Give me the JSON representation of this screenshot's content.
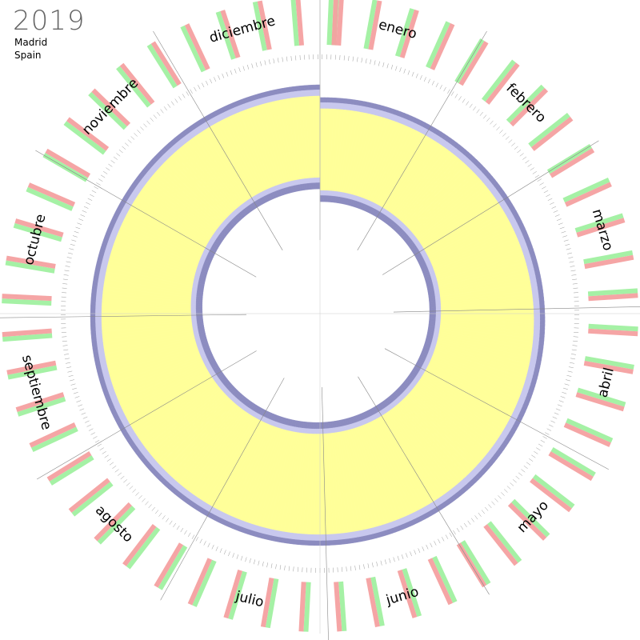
{
  "header": {
    "year": "2019",
    "city": "Madrid",
    "country": "Spain"
  },
  "months": [
    {
      "name": "enero",
      "days": 31
    },
    {
      "name": "febrero",
      "days": 28
    },
    {
      "name": "marzo",
      "days": 31
    },
    {
      "name": "abril",
      "days": 30
    },
    {
      "name": "mayo",
      "days": 31
    },
    {
      "name": "junio",
      "days": 30
    },
    {
      "name": "julio",
      "days": 31
    },
    {
      "name": "agosto",
      "days": 31
    },
    {
      "name": "septiembre",
      "days": 30
    },
    {
      "name": "octubre",
      "days": 31
    },
    {
      "name": "noviembre",
      "days": 30
    },
    {
      "name": "diciembre",
      "days": 31
    }
  ],
  "colors": {
    "day_band": "#ffff99",
    "twilight_light": "#c8c8ee",
    "twilight_dark": "#8c8cc0",
    "weekday_bar": "#a0f0a0",
    "weekend_bar": "#f4a0a0",
    "holiday_bar": "#f08080",
    "axis_line": "#888888"
  },
  "legend": {
    "sunrise_sunset_band": "daylight",
    "weekday_color": "green",
    "weekend_color": "red"
  }
}
